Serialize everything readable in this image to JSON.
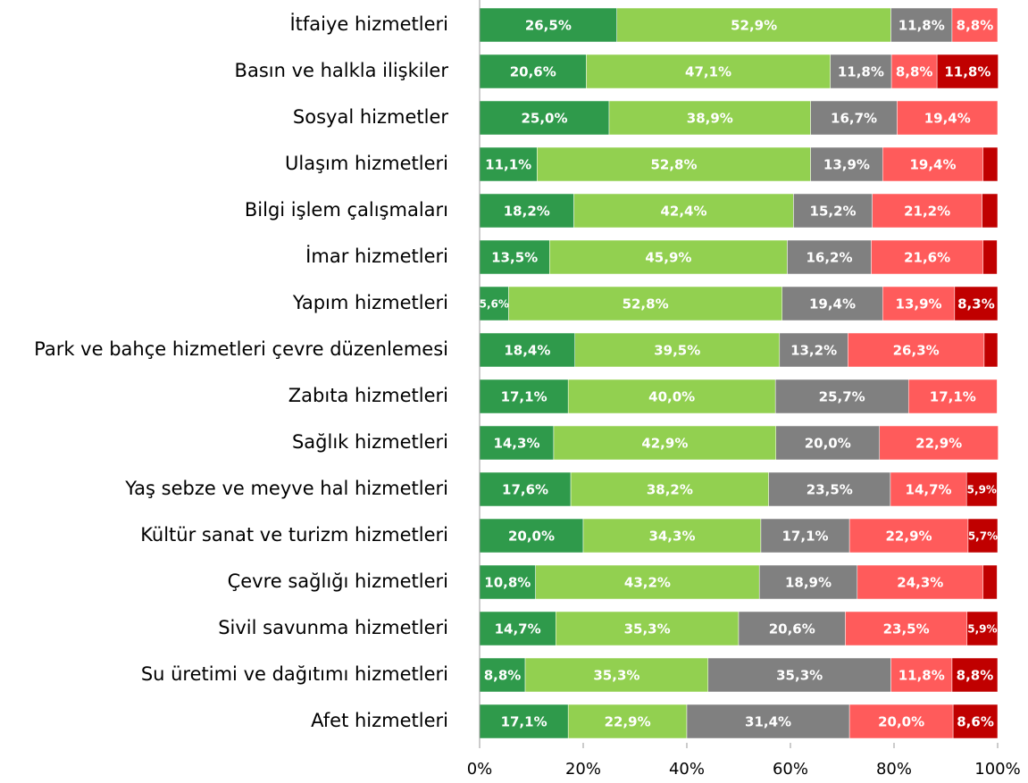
{
  "chart_data": {
    "type": "stacked-bar-horizontal",
    "categories": [
      "İtfaiye hizmetleri",
      "Basın ve halkla ilişkiler",
      "Sosyal hizmetler",
      "Ulaşım hizmetleri",
      "Bilgi işlem çalışmaları",
      "İmar hizmetleri",
      "Yapım hizmetleri",
      "Park ve bahçe hizmetleri çevre düzenlemesi",
      "Zabıta hizmetleri",
      "Sağlık hizmetleri",
      "Yaş sebze ve meyve hal hizmetleri",
      "Kültür sanat ve turizm hizmetleri",
      "Çevre sağlığı hizmetleri",
      "Sivil savunma hizmetleri",
      "Su üretimi ve dağıtımı hizmetleri",
      "Afet hizmetleri"
    ],
    "series": [
      {
        "color": "#2f9a4b",
        "values": [
          26.5,
          20.6,
          25.0,
          11.1,
          18.2,
          13.5,
          5.6,
          18.4,
          17.1,
          14.3,
          17.6,
          20.0,
          10.8,
          14.7,
          8.8,
          17.1
        ],
        "value_labels": [
          "26,5%",
          "20,6%",
          "25,0%",
          "11,1%",
          "18,2%",
          "13,5%",
          "5,6%",
          "18,4%",
          "17,1%",
          "14,3%",
          "17,6%",
          "20,0%",
          "10,8%",
          "14,7%",
          "8,8%",
          "17,1%"
        ]
      },
      {
        "color": "#92d050",
        "values": [
          52.9,
          47.1,
          38.9,
          52.8,
          42.4,
          45.9,
          52.8,
          39.5,
          40.0,
          42.9,
          38.2,
          34.3,
          43.2,
          35.3,
          35.3,
          22.9
        ],
        "value_labels": [
          "52,9%",
          "47,1%",
          "38,9%",
          "52,8%",
          "42,4%",
          "45,9%",
          "52,8%",
          "39,5%",
          "40,0%",
          "42,9%",
          "38,2%",
          "34,3%",
          "43,2%",
          "35,3%",
          "35,3%",
          "22,9%"
        ]
      },
      {
        "color": "#808080",
        "values": [
          11.8,
          11.8,
          16.7,
          13.9,
          15.2,
          16.2,
          19.4,
          13.2,
          25.7,
          20.0,
          23.5,
          17.1,
          18.9,
          20.6,
          35.3,
          31.4
        ],
        "value_labels": [
          "11,8%",
          "11,8%",
          "16,7%",
          "13,9%",
          "15,2%",
          "16,2%",
          "19,4%",
          "13,2%",
          "25,7%",
          "20,0%",
          "23,5%",
          "17,1%",
          "18,9%",
          "20,6%",
          "35,3%",
          "31,4%"
        ]
      },
      {
        "color": "#ff5b5b",
        "values": [
          8.8,
          8.8,
          19.4,
          19.4,
          21.2,
          21.6,
          13.9,
          26.3,
          17.1,
          22.9,
          14.7,
          22.9,
          24.3,
          23.5,
          11.8,
          20.0
        ],
        "value_labels": [
          "8,8%",
          "8,8%",
          "19,4%",
          "19,4%",
          "21,2%",
          "21,6%",
          "13,9%",
          "26,3%",
          "17,1%",
          "22,9%",
          "14,7%",
          "22,9%",
          "24,3%",
          "23,5%",
          "11,8%",
          "20,0%"
        ]
      },
      {
        "color": "#c00000",
        "values": [
          0,
          11.8,
          0,
          2.8,
          3.0,
          2.7,
          8.3,
          2.6,
          0,
          0,
          5.9,
          5.7,
          2.7,
          5.9,
          8.8,
          8.6
        ],
        "value_labels": [
          null,
          "11,8%",
          null,
          null,
          null,
          null,
          "8,3%",
          null,
          null,
          null,
          "5,9%",
          "5,7%",
          null,
          "5,9%",
          "8,8%",
          "8,6%"
        ]
      }
    ],
    "xlim": [
      0,
      100
    ],
    "xticks": [
      {
        "value": 0,
        "label": "0%"
      },
      {
        "value": 20,
        "label": "20%"
      },
      {
        "value": 40,
        "label": "40%"
      },
      {
        "value": 60,
        "label": "60%"
      },
      {
        "value": 80,
        "label": "80%"
      },
      {
        "value": 100,
        "label": "100%"
      }
    ]
  }
}
